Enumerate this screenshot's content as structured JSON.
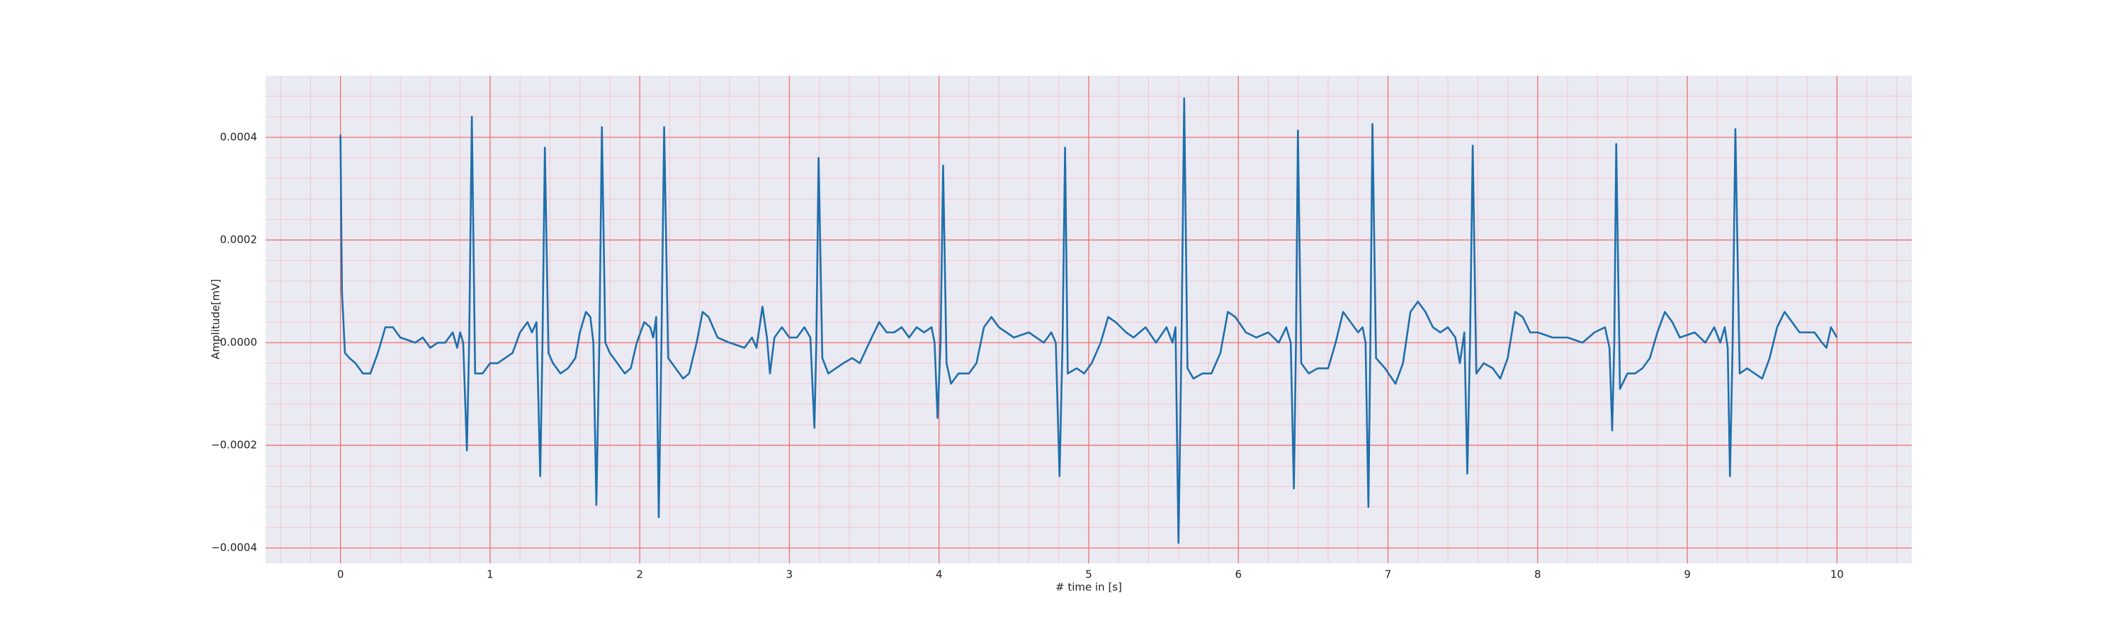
{
  "chart_data": {
    "type": "line",
    "xlabel": "# time in [s]",
    "ylabel": "Amplitude[mV]",
    "color": "#1f6fab",
    "background": "#eaeaf2",
    "grid": true,
    "grid_color": "#f07070",
    "minor_grid_color": "#f6c4cc",
    "xlim": [
      -0.5,
      10.5
    ],
    "ylim": [
      -0.00043,
      0.00052
    ],
    "xticks": [
      0,
      1,
      2,
      3,
      4,
      5,
      6,
      7,
      8,
      9,
      10
    ],
    "yticks": [
      {
        "value": -0.0004,
        "label": "−0.0004"
      },
      {
        "value": -0.0002,
        "label": "−0.0002"
      },
      {
        "value": 0,
        "label": "0.0000"
      },
      0.0002,
      0.0004
    ],
    "xminorticks": [
      -0.4,
      -0.2,
      0.2,
      0.4,
      0.6,
      0.8,
      1.2,
      1.4,
      1.6,
      1.8,
      2.2,
      2.4,
      2.6,
      2.8,
      3.2,
      3.4,
      3.6,
      3.8,
      4.2,
      4.4,
      4.6,
      4.8,
      5.2,
      5.4,
      5.6,
      5.8,
      6.2,
      6.4,
      6.6,
      6.8,
      7.2,
      7.4,
      7.6,
      7.8,
      8.2,
      8.4,
      8.6,
      8.8,
      9.2,
      9.4,
      9.6,
      9.8,
      10.2,
      10.4
    ],
    "yminorticks": [
      -0.00036,
      -0.00032,
      -0.00028,
      -0.00024,
      -0.00016,
      -0.00012,
      -8e-05,
      -4e-05,
      4e-05,
      8e-05,
      0.00012,
      0.00016,
      0.00024,
      0.00028,
      0.00032,
      0.00036,
      0.00044,
      0.00048
    ],
    "x": [
      0,
      0.01,
      0.03,
      0.06,
      0.1,
      0.15,
      0.2,
      0.25,
      0.3,
      0.35,
      0.4,
      0.5,
      0.55,
      0.6,
      0.65,
      0.7,
      0.75,
      0.78,
      0.8,
      0.82,
      0.845,
      0.86,
      0.878,
      0.9,
      0.95,
      1.0,
      1.05,
      1.1,
      1.15,
      1.2,
      1.25,
      1.28,
      1.31,
      1.335,
      1.35,
      1.366,
      1.39,
      1.42,
      1.47,
      1.52,
      1.57,
      1.6,
      1.64,
      1.67,
      1.69,
      1.71,
      1.73,
      1.747,
      1.77,
      1.8,
      1.85,
      1.9,
      1.94,
      1.98,
      2.03,
      2.07,
      2.09,
      2.11,
      2.127,
      2.145,
      2.163,
      2.19,
      2.24,
      2.29,
      2.33,
      2.38,
      2.42,
      2.46,
      2.52,
      2.6,
      2.7,
      2.75,
      2.78,
      2.82,
      2.85,
      2.87,
      2.9,
      2.95,
      3.0,
      3.05,
      3.1,
      3.14,
      3.167,
      3.18,
      3.195,
      3.22,
      3.26,
      3.31,
      3.36,
      3.42,
      3.47,
      3.55,
      3.6,
      3.65,
      3.7,
      3.75,
      3.8,
      3.85,
      3.9,
      3.95,
      3.97,
      3.99,
      4.01,
      4.027,
      4.05,
      4.08,
      4.13,
      4.2,
      4.25,
      4.3,
      4.35,
      4.4,
      4.5,
      4.6,
      4.7,
      4.75,
      4.78,
      4.805,
      4.825,
      4.842,
      4.86,
      4.92,
      4.97,
      5.02,
      5.08,
      5.13,
      5.18,
      5.25,
      5.3,
      5.38,
      5.45,
      5.52,
      5.56,
      5.58,
      5.6,
      5.62,
      5.638,
      5.66,
      5.7,
      5.76,
      5.82,
      5.88,
      5.93,
      5.98,
      6.05,
      6.12,
      6.2,
      6.27,
      6.32,
      6.35,
      6.371,
      6.385,
      6.398,
      6.42,
      6.47,
      6.53,
      6.6,
      6.65,
      6.7,
      6.75,
      6.8,
      6.83,
      6.85,
      6.869,
      6.882,
      6.896,
      6.92,
      6.98,
      7.05,
      7.1,
      7.15,
      7.2,
      7.25,
      7.3,
      7.35,
      7.4,
      7.45,
      7.48,
      7.51,
      7.53,
      7.548,
      7.566,
      7.59,
      7.64,
      7.7,
      7.75,
      7.8,
      7.85,
      7.9,
      7.95,
      8.0,
      8.1,
      8.2,
      8.3,
      8.38,
      8.45,
      8.48,
      8.498,
      8.512,
      8.525,
      8.55,
      8.6,
      8.65,
      8.7,
      8.75,
      8.8,
      8.85,
      8.9,
      8.95,
      9.05,
      9.12,
      9.18,
      9.22,
      9.25,
      9.27,
      9.285,
      9.303,
      9.321,
      9.35,
      9.4,
      9.45,
      9.5,
      9.55,
      9.6,
      9.65,
      9.7,
      9.75,
      9.8,
      9.85,
      9.9,
      9.93,
      9.96,
      10.0
    ],
    "values": [
      0.000405,
      0.0001,
      -2e-05,
      -3e-05,
      -4e-05,
      -6e-05,
      -6e-05,
      -2e-05,
      3e-05,
      3e-05,
      1e-05,
      0,
      1e-05,
      -1e-05,
      0,
      0,
      2e-05,
      -1e-05,
      2e-05,
      0,
      -0.00021,
      0,
      0.00044,
      -6e-05,
      -6e-05,
      -4e-05,
      -4e-05,
      -3e-05,
      -2e-05,
      2e-05,
      4e-05,
      2e-05,
      4e-05,
      -0.00026,
      0,
      0.00038,
      -2e-05,
      -4e-05,
      -6e-05,
      -5e-05,
      -3e-05,
      2e-05,
      6e-05,
      5e-05,
      0,
      -0.000316,
      0,
      0.00042,
      0,
      -2e-05,
      -4e-05,
      -6e-05,
      -5e-05,
      0,
      4e-05,
      3e-05,
      1e-05,
      5e-05,
      -0.00034,
      0,
      0.00042,
      -3e-05,
      -5e-05,
      -7e-05,
      -6e-05,
      0,
      6e-05,
      5e-05,
      1e-05,
      0,
      -1e-05,
      1e-05,
      -1e-05,
      7e-05,
      1e-05,
      -6e-05,
      1e-05,
      3e-05,
      1e-05,
      1e-05,
      3e-05,
      1e-05,
      -0.000166,
      0,
      0.00036,
      -3e-05,
      -6e-05,
      -5e-05,
      -4e-05,
      -3e-05,
      -4e-05,
      1e-05,
      4e-05,
      2e-05,
      2e-05,
      3e-05,
      1e-05,
      3e-05,
      2e-05,
      3e-05,
      0,
      -0.000147,
      0,
      0.000345,
      -4e-05,
      -8e-05,
      -6e-05,
      -6e-05,
      -4e-05,
      3e-05,
      5e-05,
      3e-05,
      1e-05,
      2e-05,
      0,
      2e-05,
      0,
      -0.00026,
      0,
      0.00038,
      -6e-05,
      -5e-05,
      -6e-05,
      -4e-05,
      0,
      5e-05,
      4e-05,
      2e-05,
      1e-05,
      3e-05,
      0,
      3e-05,
      0,
      3e-05,
      -0.00039,
      0,
      0.000476,
      -5e-05,
      -7e-05,
      -6e-05,
      -6e-05,
      -2e-05,
      6e-05,
      5e-05,
      2e-05,
      1e-05,
      2e-05,
      0,
      3e-05,
      0,
      -0.000284,
      0,
      0.000413,
      -4e-05,
      -6e-05,
      -5e-05,
      -5e-05,
      0,
      6e-05,
      4e-05,
      2e-05,
      3e-05,
      0,
      -0.00032,
      0,
      0.000426,
      -3e-05,
      -5e-05,
      -8e-05,
      -4e-05,
      6e-05,
      8e-05,
      6e-05,
      3e-05,
      2e-05,
      3e-05,
      1e-05,
      -4e-05,
      2e-05,
      -0.000255,
      0,
      0.000384,
      -6e-05,
      -4e-05,
      -5e-05,
      -7e-05,
      -3e-05,
      6e-05,
      5e-05,
      2e-05,
      2e-05,
      1e-05,
      1e-05,
      0,
      2e-05,
      3e-05,
      -1e-05,
      -0.000171,
      0,
      0.000387,
      -9e-05,
      -6e-05,
      -6e-05,
      -5e-05,
      -3e-05,
      2e-05,
      6e-05,
      4e-05,
      1e-05,
      2e-05,
      0,
      3e-05,
      0,
      3e-05,
      -1e-05,
      -0.00026,
      0,
      0.000416,
      -6e-05,
      -5e-05,
      -6e-05,
      -7e-05,
      -3e-05,
      3e-05,
      6e-05,
      4e-05,
      2e-05,
      2e-05,
      2e-05,
      0,
      -1e-05,
      3e-05,
      1e-05
    ]
  }
}
